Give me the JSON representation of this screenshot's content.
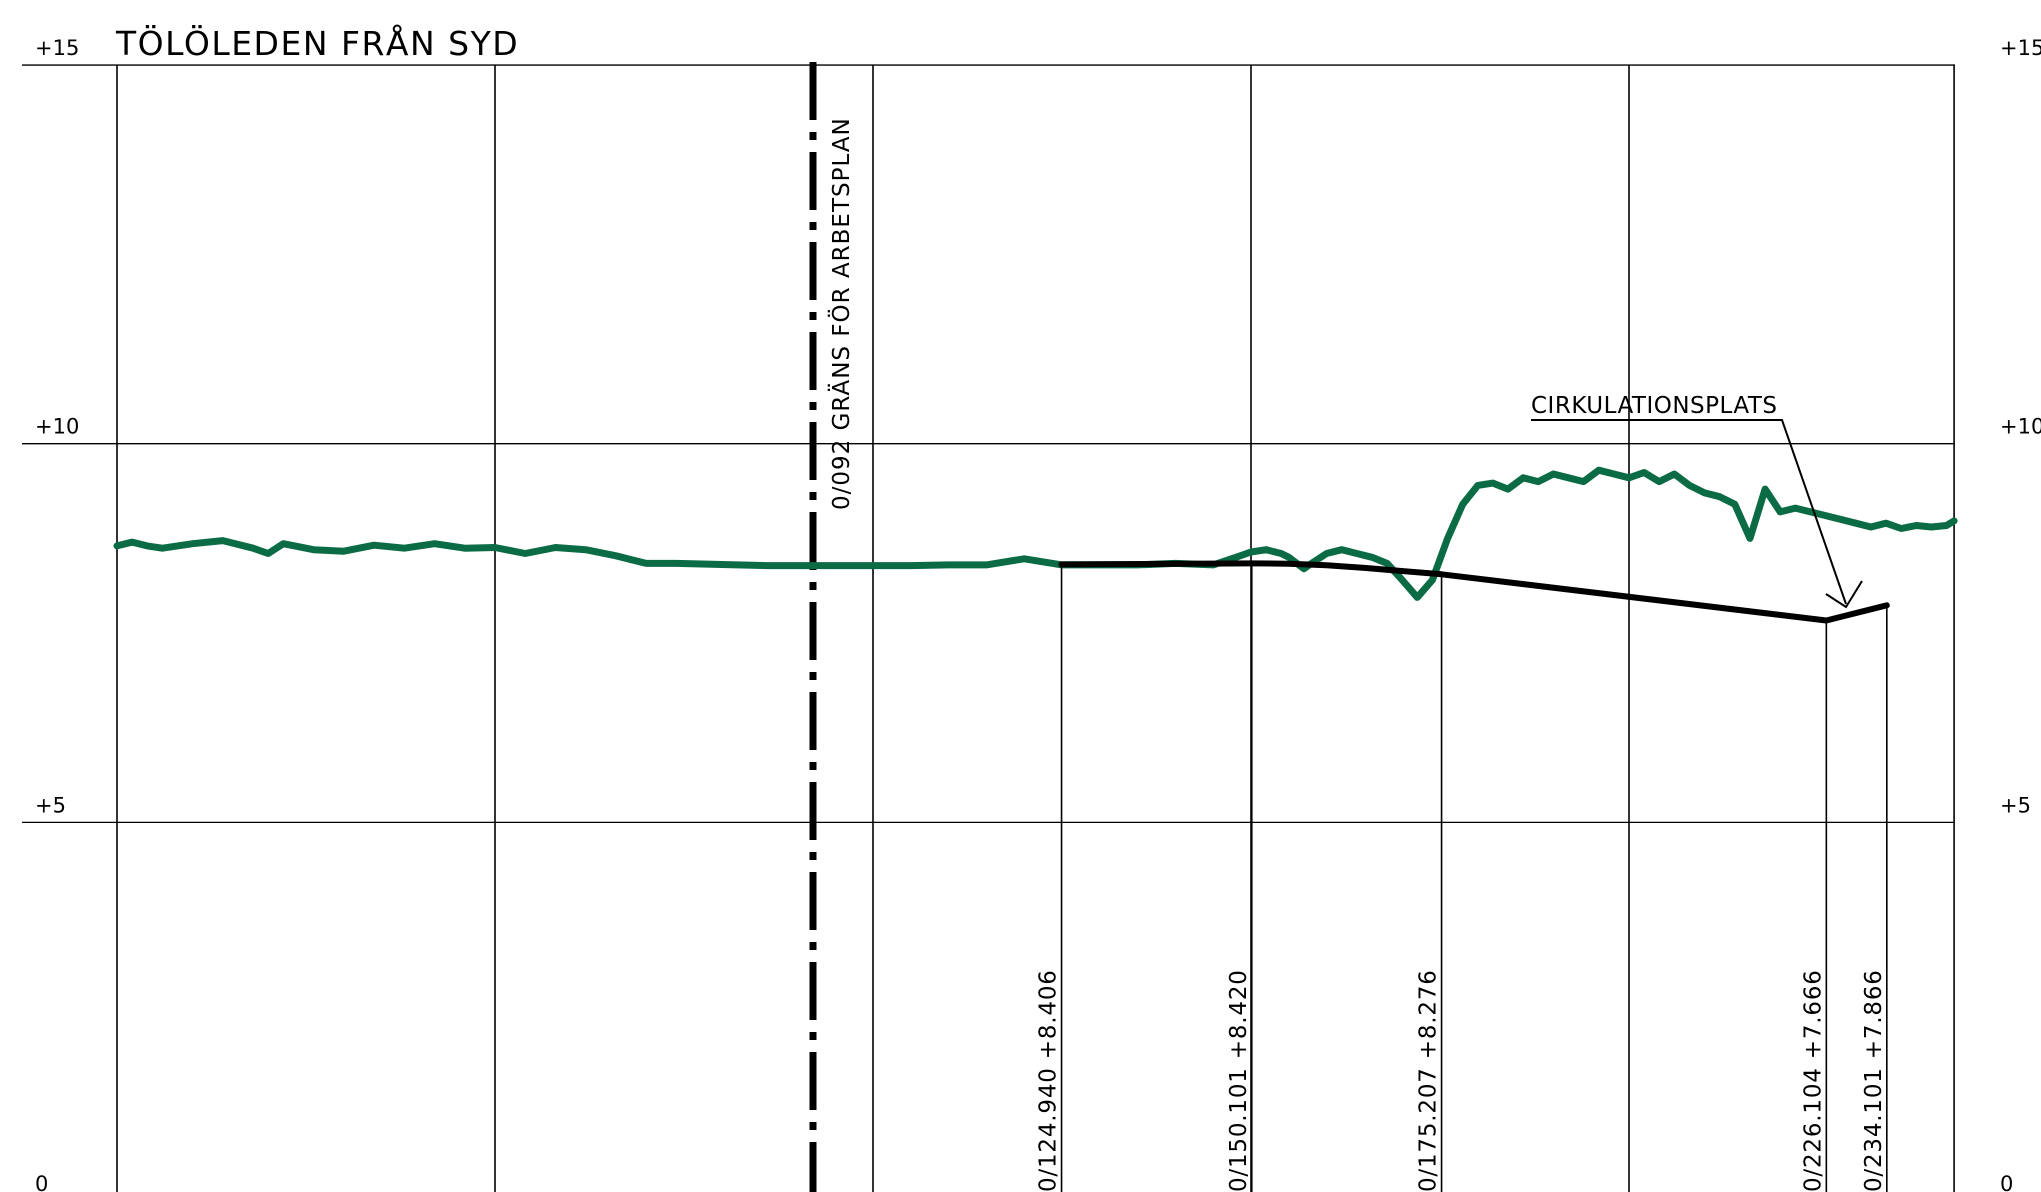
{
  "title": "TÖLÖLEDEN FRÅN SYD",
  "colors": {
    "terrain": "#0b6b45",
    "profile": "#000000",
    "grid": "#000000"
  },
  "elevation_levels": [
    {
      "value": 15,
      "label": "+15"
    },
    {
      "value": 10,
      "label": "+10"
    },
    {
      "value": 5,
      "label": "+5"
    },
    {
      "value": 0,
      "label": "0"
    }
  ],
  "boundary": {
    "station": 92,
    "label": "0/092 GRÄNS FÖR ARBETSPLAN"
  },
  "annotation": {
    "label": "CIRKULATIONSPLATS"
  },
  "chart_data": {
    "type": "line",
    "title": "TÖLÖLEDEN FRÅN SYD",
    "xlim": [
      -3,
      240
    ],
    "ylim": [
      0,
      15
    ],
    "grid_stations": [
      0,
      50,
      100,
      150,
      200,
      243
    ],
    "series": [
      {
        "role": "existing-terrain",
        "x": [
          0,
          2,
          4,
          6,
          10,
          14,
          18,
          20,
          22,
          26,
          30,
          34,
          38,
          42,
          46,
          50,
          54,
          58,
          62,
          66,
          70,
          74,
          78,
          82,
          86,
          90,
          92,
          96,
          100,
          105,
          110,
          115,
          120,
          125,
          130,
          135,
          140,
          145,
          148,
          150,
          152,
          154,
          155,
          157,
          158,
          160,
          162,
          164,
          166,
          168,
          170,
          172,
          174,
          176,
          178,
          180,
          182,
          184,
          186,
          188,
          190,
          192,
          194,
          196,
          198,
          200,
          202,
          204,
          206,
          208,
          210,
          212,
          214,
          216,
          218,
          220,
          222,
          224,
          226,
          228,
          230,
          232,
          234,
          236,
          238,
          240,
          242,
          243
        ],
        "y": [
          8.65,
          8.7,
          8.65,
          8.62,
          8.68,
          8.72,
          8.62,
          8.55,
          8.68,
          8.6,
          8.58,
          8.66,
          8.62,
          8.68,
          8.62,
          8.63,
          8.55,
          8.63,
          8.6,
          8.52,
          8.42,
          8.42,
          8.41,
          8.4,
          8.39,
          8.39,
          8.39,
          8.39,
          8.39,
          8.39,
          8.4,
          8.4,
          8.48,
          8.4,
          8.4,
          8.4,
          8.42,
          8.4,
          8.5,
          8.57,
          8.6,
          8.55,
          8.5,
          8.35,
          8.42,
          8.55,
          8.6,
          8.55,
          8.5,
          8.42,
          8.2,
          7.97,
          8.2,
          8.75,
          9.2,
          9.45,
          9.48,
          9.4,
          9.55,
          9.5,
          9.6,
          9.55,
          9.5,
          9.65,
          9.6,
          9.55,
          9.62,
          9.5,
          9.6,
          9.45,
          9.35,
          9.3,
          9.2,
          8.75,
          9.4,
          9.1,
          9.15,
          9.1,
          9.05,
          9.0,
          8.95,
          8.9,
          8.95,
          8.88,
          8.92,
          8.9,
          8.92,
          8.98
        ]
      },
      {
        "role": "new-profile",
        "x": [
          124.94,
          150.101,
          155,
          160,
          165,
          175.207,
          226.104,
          234.101
        ],
        "y": [
          8.406,
          8.42,
          8.415,
          8.395,
          8.36,
          8.276,
          7.666,
          7.866
        ]
      }
    ],
    "station_labels": [
      {
        "station": 124.94,
        "elevation": 8.406,
        "label": "0/124.940  +8.406"
      },
      {
        "station": 150.101,
        "elevation": 8.42,
        "label": "0/150.101  +8.420"
      },
      {
        "station": 175.207,
        "elevation": 8.276,
        "label": "0/175.207  +8.276"
      },
      {
        "station": 226.104,
        "elevation": 7.666,
        "label": "0/226.104  +7.666"
      },
      {
        "station": 234.101,
        "elevation": 7.866,
        "label": "0/234.101  +7.866"
      }
    ]
  }
}
